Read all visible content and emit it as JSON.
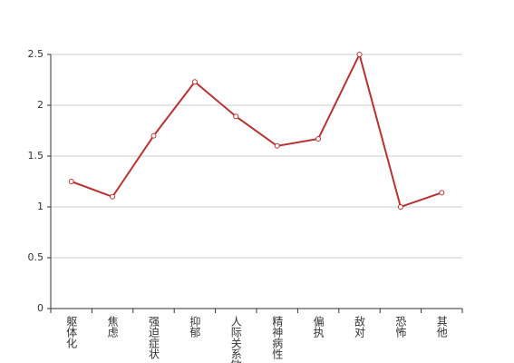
{
  "chart_data": {
    "type": "line",
    "categories": [
      "躯体化",
      "焦虑",
      "强迫症状",
      "抑郁",
      "人际关系敏感",
      "精神病性",
      "偏执",
      "敌对",
      "恐怖",
      "其他"
    ],
    "values": [
      1.25,
      1.1,
      1.7,
      2.23,
      1.89,
      1.6,
      1.67,
      2.5,
      1.0,
      1.14
    ],
    "color": "#b83232",
    "ylim": [
      0,
      2.5
    ],
    "yticks": [
      0,
      0.5,
      1,
      1.5,
      2,
      2.5
    ],
    "grid": true
  }
}
